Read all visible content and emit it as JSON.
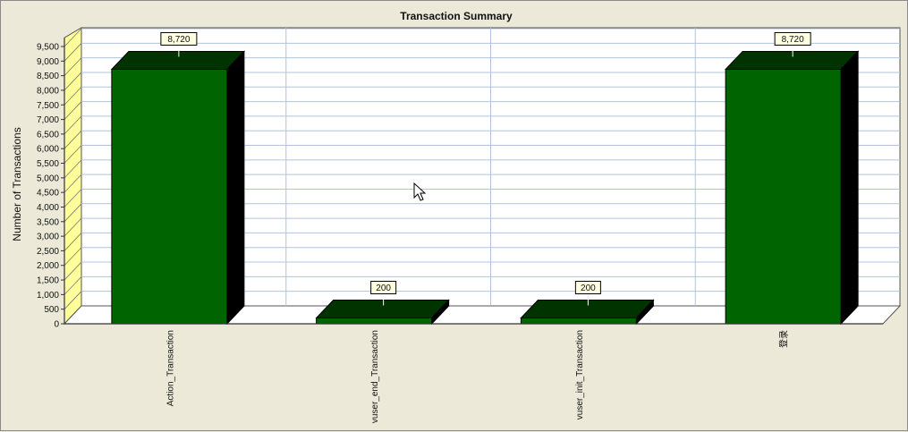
{
  "chart_data": {
    "type": "bar",
    "title": "Transaction Summary",
    "xlabel": "",
    "ylabel": "Number of Transactions",
    "categories": [
      "Action_Transaction",
      "vuser_end_Transaction",
      "vuser_init_Transaction",
      "登录"
    ],
    "values": [
      8720,
      200,
      200,
      8720
    ],
    "value_labels": [
      "8,720",
      "200",
      "200",
      "8,720"
    ],
    "ylim": [
      0,
      10000
    ],
    "yticks": [
      0,
      500,
      1000,
      1500,
      2000,
      2500,
      3000,
      3500,
      4000,
      4500,
      5000,
      5500,
      6000,
      6500,
      7000,
      7500,
      8000,
      8500,
      9000,
      9500
    ],
    "ytick_labels": [
      "0",
      "500",
      "1,000",
      "1,500",
      "2,000",
      "2,500",
      "3,000",
      "3,500",
      "4,000",
      "4,500",
      "5,000",
      "5,500",
      "6,000",
      "6,500",
      "7,000",
      "7,500",
      "8,000",
      "8,500",
      "9,000",
      "9,500"
    ],
    "grid": true,
    "colors": {
      "bar_front": "#006400",
      "bar_top": "#003300",
      "bar_side": "#000000",
      "wall": "#ffff99",
      "plot_bg": "#ffffff",
      "gridline": "#b0c4de",
      "background": "#ece9d8"
    }
  }
}
